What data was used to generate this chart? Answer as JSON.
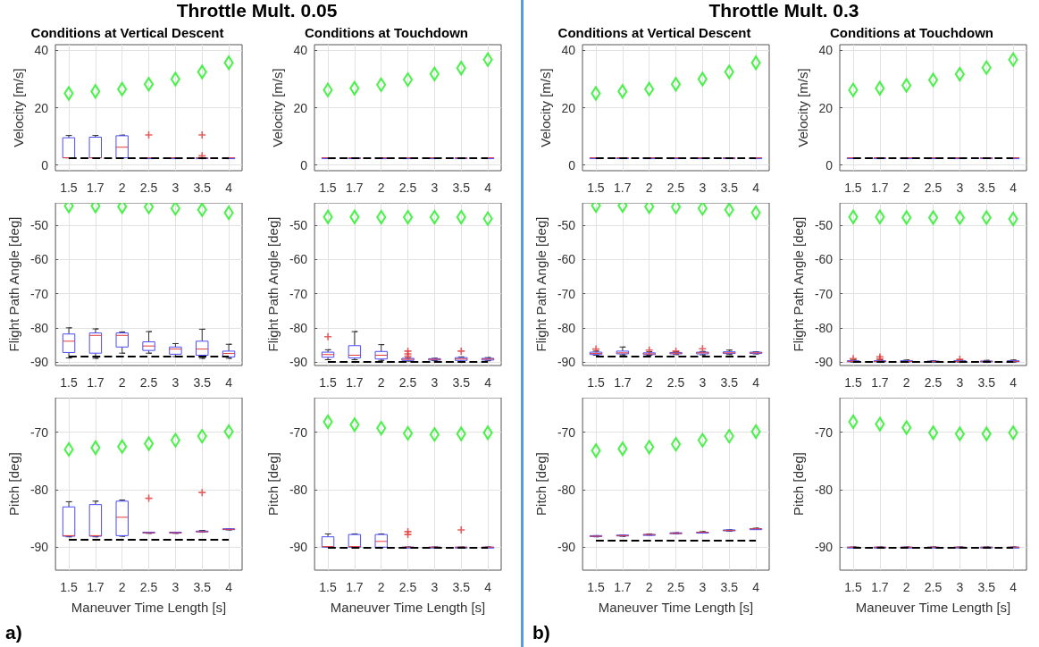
{
  "chart_data": [
    {
      "type": "box",
      "title": "Conditions at Vertical Descent",
      "ylabel": "Velocity [m/s]",
      "categories": [
        "1.5",
        "1.7",
        "2",
        "2.5",
        "3",
        "3.5",
        "4"
      ],
      "ylim": [
        -2,
        42
      ],
      "yticks": [
        0,
        20,
        40
      ],
      "grid": true,
      "annotations": [
        "Throttle Mult. 0.05",
        "a)"
      ],
      "series": [
        {
          "type": "box",
          "color": "#4b4bff",
          "boxes": [
            {
              "low": 2.5,
              "q1": 2.5,
              "median": 2.5,
              "q3": 9.5,
              "high": 10.3
            },
            {
              "low": 2.5,
              "q1": 2.5,
              "median": 2.5,
              "q3": 9.7,
              "high": 10.3
            },
            {
              "low": 2.5,
              "q1": 2.5,
              "median": 6.2,
              "q3": 10.2,
              "high": 10.4
            },
            {
              "low": 2.5,
              "q1": 2.5,
              "median": 2.5,
              "q3": 2.5,
              "high": 2.5,
              "outliers": [
                10.5
              ]
            },
            {
              "low": 2.5,
              "q1": 2.5,
              "median": 2.5,
              "q3": 2.5,
              "high": 2.5
            },
            {
              "low": 2.5,
              "q1": 2.5,
              "median": 2.5,
              "q3": 2.5,
              "high": 2.5,
              "outliers": [
                10.5,
                3.2
              ]
            },
            {
              "low": 2.5,
              "q1": 2.5,
              "median": 2.5,
              "q3": 2.5,
              "high": 2.5
            }
          ]
        },
        {
          "type": "scatter",
          "color": "#22ee22",
          "marker": "diamond",
          "x": [
            "1.5",
            "1.7",
            "2",
            "2.5",
            "3",
            "3.5",
            "4"
          ],
          "values": [
            25,
            25.7,
            26.5,
            28.2,
            30,
            32.5,
            35.7
          ]
        }
      ],
      "ref_lines": [
        {
          "axis": "y",
          "value": 2.5,
          "color": "#000000",
          "line_style": "dashed"
        }
      ]
    },
    {
      "type": "box",
      "title": "Conditions at Touchdown",
      "ylabel": "Velocity [m/s]",
      "categories": [
        "1.5",
        "1.7",
        "2",
        "2.5",
        "3",
        "3.5",
        "4"
      ],
      "ylim": [
        -2,
        42
      ],
      "yticks": [
        0,
        20,
        40
      ],
      "grid": true,
      "series": [
        {
          "type": "box",
          "color": "#4b4bff",
          "boxes": [
            {
              "low": 2.5,
              "q1": 2.5,
              "median": 2.5,
              "q3": 2.5,
              "high": 2.5
            },
            {
              "low": 2.5,
              "q1": 2.5,
              "median": 2.5,
              "q3": 2.5,
              "high": 2.5
            },
            {
              "low": 2.5,
              "q1": 2.5,
              "median": 2.5,
              "q3": 2.5,
              "high": 2.5
            },
            {
              "low": 2.5,
              "q1": 2.5,
              "median": 2.5,
              "q3": 2.5,
              "high": 2.5
            },
            {
              "low": 2.5,
              "q1": 2.5,
              "median": 2.5,
              "q3": 2.5,
              "high": 2.5
            },
            {
              "low": 2.5,
              "q1": 2.5,
              "median": 2.5,
              "q3": 2.5,
              "high": 2.5
            },
            {
              "low": 2.5,
              "q1": 2.5,
              "median": 2.5,
              "q3": 2.5,
              "high": 2.5
            }
          ]
        },
        {
          "type": "scatter",
          "color": "#22ee22",
          "marker": "diamond",
          "x": [
            "1.5",
            "1.7",
            "2",
            "2.5",
            "3",
            "3.5",
            "4"
          ],
          "values": [
            26.2,
            26.8,
            28,
            29.8,
            31.8,
            33.8,
            36.8
          ]
        }
      ],
      "ref_lines": [
        {
          "axis": "y",
          "value": 2.5,
          "color": "#000000",
          "line_style": "dashed"
        }
      ]
    },
    {
      "type": "box",
      "title": "Conditions at Vertical Descent",
      "ylabel": "Velocity [m/s]",
      "categories": [
        "1.5",
        "1.7",
        "2",
        "2.5",
        "3",
        "3.5",
        "4"
      ],
      "ylim": [
        -2,
        42
      ],
      "yticks": [
        0,
        20,
        40
      ],
      "grid": true,
      "annotations": [
        "Throttle Mult. 0.3",
        "b)"
      ],
      "series": [
        {
          "type": "box",
          "color": "#4b4bff",
          "boxes": [
            {
              "low": 2.5,
              "q1": 2.5,
              "median": 2.5,
              "q3": 2.5,
              "high": 2.5
            },
            {
              "low": 2.5,
              "q1": 2.5,
              "median": 2.5,
              "q3": 2.5,
              "high": 2.5
            },
            {
              "low": 2.5,
              "q1": 2.5,
              "median": 2.5,
              "q3": 2.5,
              "high": 2.5
            },
            {
              "low": 2.5,
              "q1": 2.5,
              "median": 2.5,
              "q3": 2.5,
              "high": 2.5
            },
            {
              "low": 2.5,
              "q1": 2.5,
              "median": 2.5,
              "q3": 2.5,
              "high": 2.5
            },
            {
              "low": 2.5,
              "q1": 2.5,
              "median": 2.5,
              "q3": 2.5,
              "high": 2.5
            },
            {
              "low": 2.5,
              "q1": 2.5,
              "median": 2.5,
              "q3": 2.5,
              "high": 2.5
            }
          ]
        },
        {
          "type": "scatter",
          "color": "#22ee22",
          "marker": "diamond",
          "x": [
            "1.5",
            "1.7",
            "2",
            "2.5",
            "3",
            "3.5",
            "4"
          ],
          "values": [
            25,
            25.7,
            26.5,
            28.2,
            30,
            32.5,
            35.7
          ]
        }
      ],
      "ref_lines": [
        {
          "axis": "y",
          "value": 2.5,
          "color": "#000000",
          "line_style": "dashed"
        }
      ]
    },
    {
      "type": "box",
      "title": "Conditions at Touchdown",
      "ylabel": "Velocity [m/s]",
      "categories": [
        "1.5",
        "1.7",
        "2",
        "2.5",
        "3",
        "3.5",
        "4"
      ],
      "ylim": [
        -2,
        42
      ],
      "yticks": [
        0,
        20,
        40
      ],
      "grid": true,
      "series": [
        {
          "type": "box",
          "color": "#4b4bff",
          "boxes": [
            {
              "low": 2.5,
              "q1": 2.5,
              "median": 2.5,
              "q3": 2.5,
              "high": 2.5
            },
            {
              "low": 2.5,
              "q1": 2.5,
              "median": 2.5,
              "q3": 2.5,
              "high": 2.5
            },
            {
              "low": 2.5,
              "q1": 2.5,
              "median": 2.5,
              "q3": 2.5,
              "high": 2.5
            },
            {
              "low": 2.5,
              "q1": 2.5,
              "median": 2.5,
              "q3": 2.5,
              "high": 2.5
            },
            {
              "low": 2.5,
              "q1": 2.5,
              "median": 2.5,
              "q3": 2.5,
              "high": 2.5
            },
            {
              "low": 2.5,
              "q1": 2.5,
              "median": 2.5,
              "q3": 2.5,
              "high": 2.5
            },
            {
              "low": 2.5,
              "q1": 2.5,
              "median": 2.5,
              "q3": 2.5,
              "high": 2.5
            }
          ]
        },
        {
          "type": "scatter",
          "color": "#22ee22",
          "marker": "diamond",
          "x": [
            "1.5",
            "1.7",
            "2",
            "2.5",
            "3",
            "3.5",
            "4"
          ],
          "values": [
            26.2,
            26.8,
            27.8,
            29.7,
            31.7,
            34,
            36.8
          ]
        }
      ],
      "ref_lines": [
        {
          "axis": "y",
          "value": 2.5,
          "color": "#000000",
          "line_style": "dashed"
        }
      ]
    },
    {
      "type": "box",
      "ylabel": "Flight Path Angle [deg]",
      "categories": [
        "1.5",
        "1.7",
        "2",
        "2.5",
        "3",
        "3.5",
        "4"
      ],
      "ylim": [
        -91,
        -43.5
      ],
      "yticks": [
        -90,
        -80,
        -70,
        -60,
        -50
      ],
      "grid": true,
      "series": [
        {
          "type": "box",
          "color": "#4b4bff",
          "boxes": [
            {
              "low": -88.8,
              "q1": -87.2,
              "median": -83.9,
              "q3": -81.8,
              "high": -80
            },
            {
              "low": -88.9,
              "q1": -87.4,
              "median": -82.2,
              "q3": -81.5,
              "high": -80.3
            },
            {
              "low": -87.4,
              "q1": -85.6,
              "median": -82.2,
              "q3": -81.5,
              "high": -81.2
            },
            {
              "low": -87.4,
              "q1": -86.6,
              "median": -85.3,
              "q3": -84.1,
              "high": -81.1
            },
            {
              "low": -88.4,
              "q1": -87.7,
              "median": -86.2,
              "q3": -85.6,
              "high": -84.6
            },
            {
              "low": -88.9,
              "q1": -88,
              "median": -86.2,
              "q3": -83.9,
              "high": -80.4
            },
            {
              "low": -88.9,
              "q1": -88.5,
              "median": -87.5,
              "q3": -86.8,
              "high": -84.8
            }
          ]
        },
        {
          "type": "scatter",
          "color": "#22ee22",
          "marker": "diamond",
          "x": [
            "1.5",
            "1.7",
            "2",
            "2.5",
            "3",
            "3.5",
            "4"
          ],
          "values": [
            -44.4,
            -44.4,
            -44.6,
            -44.7,
            -45.1,
            -45.5,
            -46.4
          ]
        }
      ],
      "ref_lines": [
        {
          "axis": "y",
          "value": -88.3,
          "color": "#000000",
          "line_style": "dashed"
        }
      ]
    },
    {
      "type": "box",
      "ylabel": "Flight Path Angle [deg]",
      "categories": [
        "1.5",
        "1.7",
        "2",
        "2.5",
        "3",
        "3.5",
        "4"
      ],
      "ylim": [
        -91,
        -43.5
      ],
      "yticks": [
        -90,
        -80,
        -70,
        -60,
        -50
      ],
      "grid": true,
      "series": [
        {
          "type": "box",
          "color": "#4b4bff",
          "boxes": [
            {
              "low": -89.3,
              "q1": -88.6,
              "median": -87.8,
              "q3": -87.1,
              "high": -86.4,
              "outliers": [
                -82.6
              ]
            },
            {
              "low": -89.3,
              "q1": -88.8,
              "median": -88,
              "q3": -85.2,
              "high": -81.1
            },
            {
              "low": -89.5,
              "q1": -89.1,
              "median": -88,
              "q3": -86.9,
              "high": -84.9
            },
            {
              "low": -89.7,
              "q1": -89.5,
              "median": -89.2,
              "q3": -88.9,
              "high": -88.8,
              "outliers": [
                -86.8,
                -87.6,
                -88.3
              ]
            },
            {
              "low": -89.6,
              "q1": -89.4,
              "median": -89.2,
              "q3": -89,
              "high": -88.9
            },
            {
              "low": -89.8,
              "q1": -89.5,
              "median": -89.1,
              "q3": -88.7,
              "high": -88.5,
              "outliers": [
                -86.8
              ]
            },
            {
              "low": -89.6,
              "q1": -89.4,
              "median": -89.1,
              "q3": -88.9,
              "high": -88.7
            }
          ]
        },
        {
          "type": "scatter",
          "color": "#22ee22",
          "marker": "diamond",
          "x": [
            "1.5",
            "1.7",
            "2",
            "2.5",
            "3",
            "3.5",
            "4"
          ],
          "values": [
            -47.6,
            -47.6,
            -47.7,
            -47.7,
            -47.7,
            -47.7,
            -48.1
          ]
        }
      ],
      "ref_lines": [
        {
          "axis": "y",
          "value": -90,
          "color": "#000000",
          "line_style": "dashed"
        }
      ]
    },
    {
      "type": "box",
      "ylabel": "Flight Path Angle [deg]",
      "categories": [
        "1.5",
        "1.7",
        "2",
        "2.5",
        "3",
        "3.5",
        "4"
      ],
      "ylim": [
        -91,
        -43.5
      ],
      "yticks": [
        -90,
        -80,
        -70,
        -60,
        -50
      ],
      "grid": true,
      "series": [
        {
          "type": "box",
          "color": "#4b4bff",
          "boxes": [
            {
              "low": -88,
              "q1": -87.8,
              "median": -87.5,
              "q3": -87.1,
              "high": -86.8,
              "outliers": [
                -86.2
              ]
            },
            {
              "low": -87.9,
              "q1": -87.6,
              "median": -87.3,
              "q3": -86.8,
              "high": -85.6
            },
            {
              "low": -88,
              "q1": -87.8,
              "median": -87.6,
              "q3": -87.3,
              "high": -87,
              "outliers": [
                -86.5
              ]
            },
            {
              "low": -87.8,
              "q1": -87.6,
              "median": -87.4,
              "q3": -87.2,
              "high": -87,
              "outliers": [
                -86.8
              ]
            },
            {
              "low": -87.9,
              "q1": -87.6,
              "median": -87.3,
              "q3": -87.1,
              "high": -86.9,
              "outliers": [
                -86.1
              ]
            },
            {
              "low": -87.8,
              "q1": -87.5,
              "median": -87.3,
              "q3": -87,
              "high": -86.5
            },
            {
              "low": -87.6,
              "q1": -87.5,
              "median": -87.3,
              "q3": -87.1,
              "high": -87
            }
          ]
        },
        {
          "type": "scatter",
          "color": "#22ee22",
          "marker": "diamond",
          "x": [
            "1.5",
            "1.7",
            "2",
            "2.5",
            "3",
            "3.5",
            "4"
          ],
          "values": [
            -44.3,
            -44.3,
            -44.6,
            -44.7,
            -45.1,
            -45.5,
            -46.4
          ]
        }
      ],
      "ref_lines": [
        {
          "axis": "y",
          "value": -88.3,
          "color": "#000000",
          "line_style": "dashed"
        }
      ]
    },
    {
      "type": "box",
      "ylabel": "Flight Path Angle [deg]",
      "categories": [
        "1.5",
        "1.7",
        "2",
        "2.5",
        "3",
        "3.5",
        "4"
      ],
      "ylim": [
        -91,
        -43.5
      ],
      "yticks": [
        -90,
        -80,
        -70,
        -60,
        -50
      ],
      "grid": true,
      "series": [
        {
          "type": "box",
          "color": "#4b4bff",
          "boxes": [
            {
              "low": -90,
              "q1": -89.9,
              "median": -89.8,
              "q3": -89.6,
              "high": -89.4,
              "outliers": [
                -89
              ]
            },
            {
              "low": -90,
              "q1": -89.9,
              "median": -89.8,
              "q3": -89.6,
              "high": -89.4,
              "outliers": [
                -88.5,
                -89.1
              ]
            },
            {
              "low": -90,
              "q1": -89.9,
              "median": -89.8,
              "q3": -89.6,
              "high": -89.4
            },
            {
              "low": -90,
              "q1": -89.9,
              "median": -89.8,
              "q3": -89.7,
              "high": -89.6
            },
            {
              "low": -90,
              "q1": -89.9,
              "median": -89.8,
              "q3": -89.6,
              "high": -89.4,
              "outliers": [
                -89.2
              ]
            },
            {
              "low": -90,
              "q1": -89.9,
              "median": -89.8,
              "q3": -89.7,
              "high": -89.5
            },
            {
              "low": -90,
              "q1": -89.9,
              "median": -89.8,
              "q3": -89.6,
              "high": -89.4
            }
          ]
        },
        {
          "type": "scatter",
          "color": "#22ee22",
          "marker": "diamond",
          "x": [
            "1.5",
            "1.7",
            "2",
            "2.5",
            "3",
            "3.5",
            "4"
          ],
          "values": [
            -47.6,
            -47.6,
            -47.8,
            -47.8,
            -47.8,
            -47.8,
            -48.2
          ]
        }
      ],
      "ref_lines": [
        {
          "axis": "y",
          "value": -90,
          "color": "#000000",
          "line_style": "dashed"
        }
      ]
    },
    {
      "type": "box",
      "ylabel": "Pitch [deg]",
      "xlabel": "Maneuver Time Length [s]",
      "categories": [
        "1.5",
        "1.7",
        "2",
        "2.5",
        "3",
        "3.5",
        "4"
      ],
      "ylim": [
        -94,
        -64
      ],
      "yticks": [
        -90,
        -80,
        -70
      ],
      "grid": true,
      "series": [
        {
          "type": "box",
          "color": "#4b4bff",
          "boxes": [
            {
              "low": -88.2,
              "q1": -88.1,
              "median": -88,
              "q3": -83,
              "high": -82.1
            },
            {
              "low": -88.2,
              "q1": -88.1,
              "median": -88,
              "q3": -82.6,
              "high": -82
            },
            {
              "low": -88.1,
              "q1": -88,
              "median": -84.8,
              "q3": -82,
              "high": -81.8
            },
            {
              "low": -87.6,
              "q1": -87.5,
              "median": -87.5,
              "q3": -87.4,
              "high": -87.4,
              "outliers": [
                -81.5
              ]
            },
            {
              "low": -87.6,
              "q1": -87.5,
              "median": -87.5,
              "q3": -87.4,
              "high": -87.4
            },
            {
              "low": -87.4,
              "q1": -87.3,
              "median": -87.3,
              "q3": -87.2,
              "high": -87.1,
              "outliers": [
                -80.5
              ]
            },
            {
              "low": -87,
              "q1": -86.9,
              "median": -86.9,
              "q3": -86.8,
              "high": -86.8
            }
          ]
        },
        {
          "type": "scatter",
          "color": "#22ee22",
          "marker": "diamond",
          "x": [
            "1.5",
            "1.7",
            "2",
            "2.5",
            "3",
            "3.5",
            "4"
          ],
          "values": [
            -73,
            -72.7,
            -72.5,
            -72,
            -71.4,
            -70.7,
            -69.9
          ]
        }
      ],
      "ref_lines": [
        {
          "axis": "y",
          "value": -88.7,
          "color": "#000000",
          "line_style": "dashed"
        }
      ]
    },
    {
      "type": "box",
      "ylabel": "Pitch [deg]",
      "xlabel": "Maneuver Time Length [s]",
      "categories": [
        "1.5",
        "1.7",
        "2",
        "2.5",
        "3",
        "3.5",
        "4"
      ],
      "ylim": [
        -94,
        -64
      ],
      "yticks": [
        -90,
        -80,
        -70
      ],
      "grid": true,
      "series": [
        {
          "type": "box",
          "color": "#4b4bff",
          "boxes": [
            {
              "low": -90,
              "q1": -90,
              "median": -89.9,
              "q3": -88.2,
              "high": -87.7
            },
            {
              "low": -90,
              "q1": -90,
              "median": -89.9,
              "q3": -87.8,
              "high": -87.7
            },
            {
              "low": -90,
              "q1": -90,
              "median": -89,
              "q3": -87.8,
              "high": -87.7
            },
            {
              "low": -90,
              "q1": -90,
              "median": -90,
              "q3": -90,
              "high": -90,
              "outliers": [
                -87.3,
                -87.8
              ]
            },
            {
              "low": -90,
              "q1": -90,
              "median": -90,
              "q3": -90,
              "high": -90
            },
            {
              "low": -90,
              "q1": -90,
              "median": -90,
              "q3": -90,
              "high": -90,
              "outliers": [
                -87
              ]
            },
            {
              "low": -90,
              "q1": -90,
              "median": -90,
              "q3": -90,
              "high": -90
            }
          ]
        },
        {
          "type": "scatter",
          "color": "#22ee22",
          "marker": "diamond",
          "x": [
            "1.5",
            "1.7",
            "2",
            "2.5",
            "3",
            "3.5",
            "4"
          ],
          "values": [
            -68.2,
            -68.7,
            -69.3,
            -70.2,
            -70.4,
            -70.3,
            -70.1
          ]
        }
      ],
      "ref_lines": [
        {
          "axis": "y",
          "value": -90,
          "color": "#000000",
          "line_style": "dashed"
        }
      ]
    },
    {
      "type": "box",
      "ylabel": "Pitch [deg]",
      "xlabel": "Maneuver Time Length [s]",
      "categories": [
        "1.5",
        "1.7",
        "2",
        "2.5",
        "3",
        "3.5",
        "4"
      ],
      "ylim": [
        -94,
        -64
      ],
      "yticks": [
        -90,
        -80,
        -70
      ],
      "grid": true,
      "series": [
        {
          "type": "box",
          "color": "#4b4bff",
          "boxes": [
            {
              "low": -88.2,
              "q1": -88.1,
              "median": -88.1,
              "q3": -88,
              "high": -88
            },
            {
              "low": -88.1,
              "q1": -88,
              "median": -88,
              "q3": -87.9,
              "high": -87.9
            },
            {
              "low": -87.9,
              "q1": -87.8,
              "median": -87.8,
              "q3": -87.8,
              "high": -87.7
            },
            {
              "low": -87.7,
              "q1": -87.6,
              "median": -87.6,
              "q3": -87.5,
              "high": -87.5
            },
            {
              "low": -87.5,
              "q1": -87.4,
              "median": -87.4,
              "q3": -87.4,
              "high": -87.3
            },
            {
              "low": -87.2,
              "q1": -87.1,
              "median": -87.1,
              "q3": -87,
              "high": -87
            },
            {
              "low": -86.9,
              "q1": -86.8,
              "median": -86.8,
              "q3": -86.8,
              "high": -86.7
            }
          ]
        },
        {
          "type": "scatter",
          "color": "#22ee22",
          "marker": "diamond",
          "x": [
            "1.5",
            "1.7",
            "2",
            "2.5",
            "3",
            "3.5",
            "4"
          ],
          "values": [
            -73.2,
            -72.9,
            -72.6,
            -72.1,
            -71.4,
            -70.7,
            -69.9
          ]
        }
      ],
      "ref_lines": [
        {
          "axis": "y",
          "value": -88.8,
          "color": "#000000",
          "line_style": "dashed"
        }
      ]
    },
    {
      "type": "box",
      "ylabel": "Pitch [deg]",
      "xlabel": "Maneuver Time Length [s]",
      "categories": [
        "1.5",
        "1.7",
        "2",
        "2.5",
        "3",
        "3.5",
        "4"
      ],
      "ylim": [
        -94,
        -64
      ],
      "yticks": [
        -90,
        -80,
        -70
      ],
      "grid": true,
      "series": [
        {
          "type": "box",
          "color": "#4b4bff",
          "boxes": [
            {
              "low": -90,
              "q1": -90,
              "median": -90,
              "q3": -90,
              "high": -90
            },
            {
              "low": -90,
              "q1": -90,
              "median": -90,
              "q3": -90,
              "high": -90
            },
            {
              "low": -90,
              "q1": -90,
              "median": -90,
              "q3": -90,
              "high": -90
            },
            {
              "low": -90,
              "q1": -90,
              "median": -90,
              "q3": -90,
              "high": -90
            },
            {
              "low": -90,
              "q1": -90,
              "median": -90,
              "q3": -90,
              "high": -90
            },
            {
              "low": -90,
              "q1": -90,
              "median": -90,
              "q3": -90,
              "high": -90
            },
            {
              "low": -90,
              "q1": -90,
              "median": -90,
              "q3": -90,
              "high": -90
            }
          ]
        },
        {
          "type": "scatter",
          "color": "#22ee22",
          "marker": "diamond",
          "x": [
            "1.5",
            "1.7",
            "2",
            "2.5",
            "3",
            "3.5",
            "4"
          ],
          "values": [
            -68.2,
            -68.6,
            -69.2,
            -70.1,
            -70.3,
            -70.3,
            -70.1
          ]
        }
      ],
      "ref_lines": [
        {
          "axis": "y",
          "value": -90,
          "color": "#000000",
          "line_style": "dashed"
        }
      ]
    }
  ]
}
